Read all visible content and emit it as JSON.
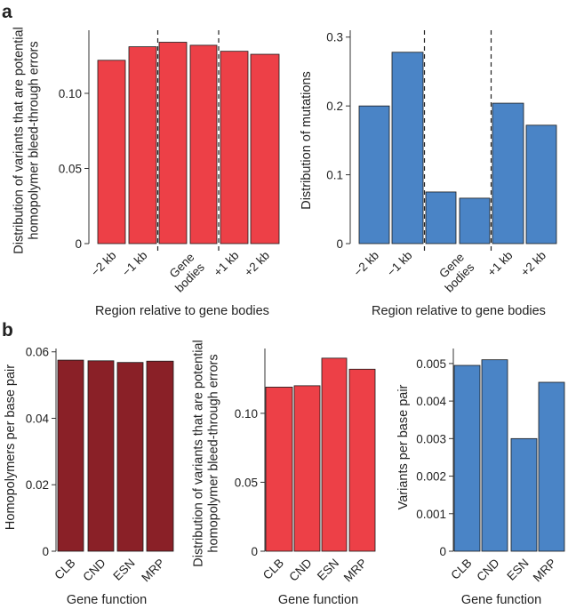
{
  "panels": [
    {
      "id": "a",
      "label": "a"
    },
    {
      "id": "b",
      "label": "b"
    }
  ],
  "colors": {
    "red": "#ED4047",
    "blue": "#4A84C6",
    "darkred": "#8A2027",
    "axis": "#333333",
    "bar_edge": "#1a1a1a"
  },
  "chart_data": [
    {
      "id": "a-left",
      "type": "bar",
      "categories": [
        "−2 kb",
        "−1 kb",
        "",
        "Gene bodies",
        "+1 kb",
        "+2 kb"
      ],
      "values": [
        0.122,
        0.131,
        0.134,
        0.132,
        0.128,
        0.126
      ],
      "xlabel": "Region relative to gene bodies",
      "ylabel": [
        "Distribution of variants that are potential",
        "homopolymer bleed-through errors"
      ],
      "ylim": [
        0,
        0.142
      ],
      "yticks": [
        0,
        0.05,
        0.1
      ],
      "ytick_labels": [
        "0",
        "0.05",
        "0.10"
      ],
      "color": "red",
      "separators_after": [
        2,
        4
      ]
    },
    {
      "id": "a-right",
      "type": "bar",
      "categories": [
        "−2 kb",
        "−1 kb",
        "",
        "Gene bodies",
        "+1 kb",
        "+2 kb"
      ],
      "values": [
        0.2,
        0.278,
        0.075,
        0.066,
        0.204,
        0.172
      ],
      "xlabel": "Region relative to gene bodies",
      "ylabel": [
        "Distribution of mutations"
      ],
      "ylim": [
        0,
        0.31
      ],
      "yticks": [
        0,
        0.1,
        0.2,
        0.3
      ],
      "ytick_labels": [
        "0",
        "0.1",
        "0.2",
        "0.3"
      ],
      "color": "blue",
      "separators_after": [
        2,
        4
      ]
    },
    {
      "id": "b-left",
      "type": "bar",
      "categories": [
        "CLB",
        "CND",
        "ESN",
        "MRP"
      ],
      "values": [
        0.0575,
        0.0573,
        0.0568,
        0.0572
      ],
      "xlabel": "Gene function",
      "ylabel": [
        "Homopolymers per base pair"
      ],
      "ylim": [
        0,
        0.061
      ],
      "yticks": [
        0,
        0.02,
        0.04,
        0.06
      ],
      "ytick_labels": [
        "0",
        "0.02",
        "0.04",
        "0.06"
      ],
      "color": "darkred",
      "separators_after": []
    },
    {
      "id": "b-middle",
      "type": "bar",
      "categories": [
        "CLB",
        "CND",
        "ESN",
        "MRP"
      ],
      "values": [
        0.119,
        0.12,
        0.14,
        0.132
      ],
      "xlabel": "Gene function",
      "ylabel": [
        "Distribution of variants that are potential",
        "homopolymer bleed-through errors"
      ],
      "ylim": [
        0,
        0.147
      ],
      "yticks": [
        0,
        0.05,
        0.1
      ],
      "ytick_labels": [
        "0",
        "0.05",
        "0.10"
      ],
      "color": "red",
      "separators_after": []
    },
    {
      "id": "b-right",
      "type": "bar",
      "categories": [
        "CLB",
        "CND",
        "ESN",
        "MRP"
      ],
      "values": [
        0.00495,
        0.0051,
        0.003,
        0.0045
      ],
      "xlabel": "Gene function",
      "ylabel": [
        "Variants per base pair"
      ],
      "ylim": [
        0,
        0.0054
      ],
      "yticks": [
        0,
        0.001,
        0.002,
        0.003,
        0.004,
        0.005
      ],
      "ytick_labels": [
        "0",
        "0.001",
        "0.002",
        "0.003",
        "0.004",
        "0.005"
      ],
      "color": "blue",
      "separators_after": []
    }
  ]
}
